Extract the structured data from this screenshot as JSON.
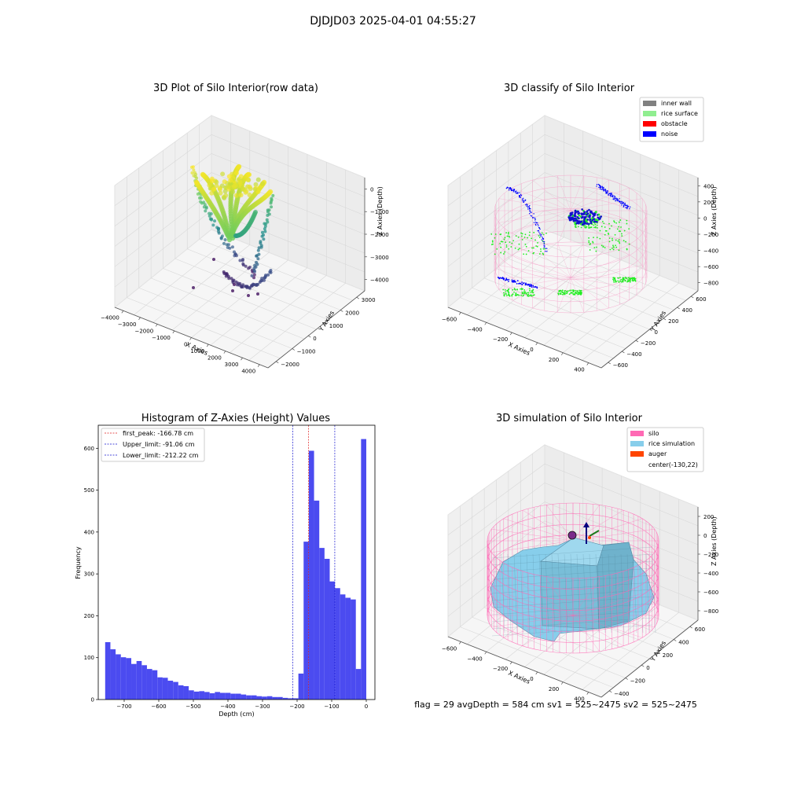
{
  "figure": {
    "suptitle": "DJDJD03 2025-04-01 04:55:27",
    "footer": "flag = 29  avgDepth = 584 cm  sv1 = 525~2475  sv2 = 525~2475"
  },
  "colors": {
    "histogram_bar": "#4b4bf0",
    "peak_line": "#e02020",
    "limit_line": "#1515d0",
    "inner_wall": "#808080",
    "rice_surface": "#90ee90",
    "obstacle": "#ff0000",
    "noise": "#0000ff",
    "silo": "#ff69b4",
    "rice_simulation": "#87ceeb",
    "auger": "#ff4500",
    "wireframe": "#f4a0c8",
    "pane": "#f0f0f0",
    "grid": "#d8d8d8"
  },
  "chart_data": [
    {
      "type": "scatter",
      "title": "3D Plot of Silo Interior(row data)",
      "xlabel": "X Axies",
      "ylabel": "Y Axies",
      "zlabel": "Z Axies (Depth)",
      "x_ticks": [
        "−4000",
        "−3000",
        "−2000",
        "−1000",
        "0",
        "1000",
        "2000",
        "3000",
        "4000"
      ],
      "y_ticks": [
        "−2000",
        "−1000",
        "0",
        "1000",
        "2000",
        "3000"
      ],
      "z_ticks": [
        "0",
        "−1000",
        "−2000",
        "−3000",
        "−4000"
      ],
      "colormap": "viridis"
    },
    {
      "type": "scatter",
      "title": "3D classify of Silo Interior",
      "xlabel": "X Axies",
      "ylabel": "Y Axies",
      "zlabel": "Z Axies (Depth)",
      "x_ticks": [
        "−600",
        "−400",
        "−200",
        "0",
        "200",
        "400"
      ],
      "y_ticks": [
        "−600",
        "−400",
        "−200",
        "0",
        "200",
        "400",
        "600"
      ],
      "z_ticks": [
        "400",
        "200",
        "0",
        "−200",
        "−400",
        "−600",
        "−800"
      ],
      "legend": [
        "inner wall",
        "rice surface",
        "obstacle",
        "noise"
      ],
      "legend_position": "top-right"
    },
    {
      "type": "bar",
      "title": "Histogram of Z-Axies (Height) Values",
      "xlabel": "Depth (cm)",
      "ylabel": "Frequency",
      "xlim": [
        -775,
        25
      ],
      "ylim": [
        0,
        655
      ],
      "x_ticks": [
        -700,
        -600,
        -500,
        -400,
        -300,
        -200,
        -100,
        0
      ],
      "x_tick_labels": [
        "−700",
        "−600",
        "−500",
        "−400",
        "−300",
        "−200",
        "−100",
        "0"
      ],
      "y_ticks": [
        0,
        100,
        200,
        300,
        400,
        500,
        600
      ],
      "y_tick_labels": [
        "0",
        "100",
        "200",
        "300",
        "400",
        "500",
        "600"
      ],
      "bin_start": -755,
      "bin_width": 15.1,
      "values": [
        137,
        120,
        108,
        101,
        99,
        85,
        92,
        82,
        73,
        70,
        53,
        52,
        45,
        42,
        34,
        32,
        22,
        19,
        20,
        18,
        15,
        18,
        16,
        16,
        14,
        14,
        12,
        10,
        10,
        8,
        7,
        8,
        6,
        6,
        4,
        3,
        3,
        62,
        377,
        594,
        475,
        362,
        336,
        282,
        266,
        251,
        243,
        239,
        73,
        622
      ],
      "lines": [
        {
          "label": "first_peak: -166.78 cm",
          "x": -166.78,
          "color": "#e02020"
        },
        {
          "label": "Upper_limit: -91.06 cm",
          "x": -91.06,
          "color": "#1515d0"
        },
        {
          "label": "Lower_limit: -212.22 cm",
          "x": -212.22,
          "color": "#1515d0"
        }
      ],
      "legend_position": "top-left"
    },
    {
      "type": "area",
      "title": "3D simulation of Silo Interior",
      "xlabel": "X Axies",
      "ylabel": "Y Axies",
      "zlabel": "Z Axies (Depth)",
      "x_ticks": [
        "−600",
        "−400",
        "−200",
        "0",
        "200",
        "400"
      ],
      "y_ticks": [
        "−400",
        "−200",
        "0",
        "200",
        "400",
        "600"
      ],
      "z_ticks": [
        "200",
        "0",
        "−200",
        "−400",
        "−600",
        "−800"
      ],
      "legend": [
        "silo",
        "rice simulation",
        "auger",
        "center(-130,22)"
      ],
      "legend_position": "top-right"
    }
  ]
}
